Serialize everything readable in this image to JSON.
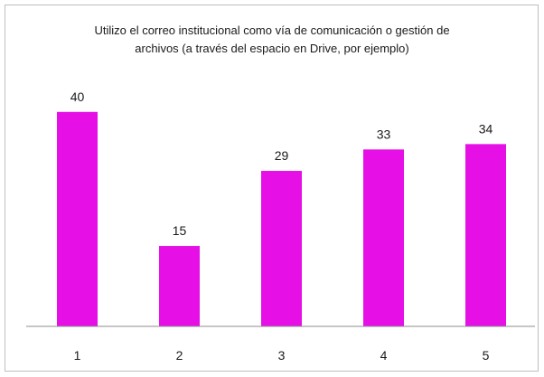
{
  "chart_data": {
    "type": "bar",
    "title_line1": "Utilizo el correo institucional como vía de comunicación  o gestión de",
    "title_line2": "archivos (a través del espacio en Drive,  por ejemplo)",
    "categories": [
      "1",
      "2",
      "3",
      "4",
      "5"
    ],
    "values": [
      40,
      15,
      29,
      33,
      34
    ],
    "bar_color": "#e60fe6",
    "axis_color": "#8c8c8c",
    "xlabel": "",
    "ylabel": "",
    "ylim": [
      0,
      43
    ],
    "grid": false,
    "legend": "none"
  }
}
